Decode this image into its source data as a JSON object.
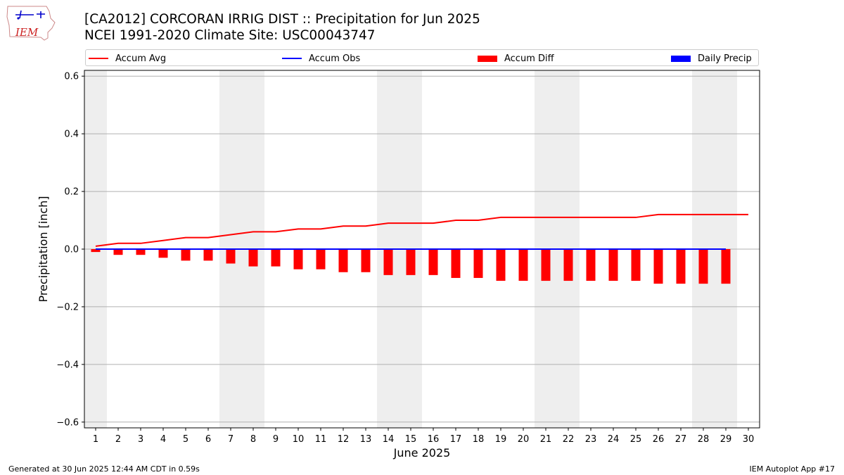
{
  "header": {
    "title": "[CA2012] CORCORAN IRRIG DIST :: Precipitation for Jun 2025",
    "subtitle": "NCEI 1991-2020 Climate Site: USC00043747"
  },
  "logo": {
    "text": "IEM"
  },
  "legend": {
    "items": [
      {
        "label": "Accum Avg",
        "kind": "line",
        "color": "#ff0000"
      },
      {
        "label": "Accum Obs",
        "kind": "line",
        "color": "#0000ff"
      },
      {
        "label": "Accum Diff",
        "kind": "box",
        "color": "#ff0000"
      },
      {
        "label": "Daily Precip",
        "kind": "box",
        "color": "#0000ff"
      }
    ]
  },
  "footer": {
    "left": "Generated at 30 Jun 2025 12:44 AM CDT in 0.59s",
    "right": "IEM Autoplot App #17"
  },
  "chart_data": {
    "type": "bar",
    "xlabel": "June 2025",
    "ylabel": "Precipitation [inch]",
    "x": [
      1,
      2,
      3,
      4,
      5,
      6,
      7,
      8,
      9,
      10,
      11,
      12,
      13,
      14,
      15,
      16,
      17,
      18,
      19,
      20,
      21,
      22,
      23,
      24,
      25,
      26,
      27,
      28,
      29,
      30
    ],
    "xlim": [
      0.5,
      30.5
    ],
    "ylim": [
      -0.62,
      0.62
    ],
    "yticks": [
      -0.6,
      -0.4,
      -0.2,
      0.0,
      0.2,
      0.4,
      0.6
    ],
    "ytick_labels": [
      "−0.6",
      "−0.4",
      "−0.2",
      "0.0",
      "0.2",
      "0.4",
      "0.6"
    ],
    "weekend_shading": [
      [
        0.5,
        1.5
      ],
      [
        6.5,
        8.5
      ],
      [
        13.5,
        15.5
      ],
      [
        20.5,
        22.5
      ],
      [
        27.5,
        29.5
      ]
    ],
    "grid": "y",
    "legend_position": "top",
    "series": [
      {
        "name": "Accum Avg",
        "type": "line",
        "color": "#ff0000",
        "x": [
          1,
          2,
          3,
          4,
          5,
          6,
          7,
          8,
          9,
          10,
          11,
          12,
          13,
          14,
          15,
          16,
          17,
          18,
          19,
          20,
          21,
          22,
          23,
          24,
          25,
          26,
          27,
          28,
          29,
          30
        ],
        "values": [
          0.01,
          0.02,
          0.02,
          0.03,
          0.04,
          0.04,
          0.05,
          0.06,
          0.06,
          0.07,
          0.07,
          0.08,
          0.08,
          0.09,
          0.09,
          0.09,
          0.1,
          0.1,
          0.11,
          0.11,
          0.11,
          0.11,
          0.11,
          0.11,
          0.11,
          0.12,
          0.12,
          0.12,
          0.12,
          0.12
        ]
      },
      {
        "name": "Accum Obs",
        "type": "line",
        "color": "#0000ff",
        "x": [
          1,
          2,
          3,
          4,
          5,
          6,
          7,
          8,
          9,
          10,
          11,
          12,
          13,
          14,
          15,
          16,
          17,
          18,
          19,
          20,
          21,
          22,
          23,
          24,
          25,
          26,
          27,
          28,
          29
        ],
        "values": [
          0,
          0,
          0,
          0,
          0,
          0,
          0,
          0,
          0,
          0,
          0,
          0,
          0,
          0,
          0,
          0,
          0,
          0,
          0,
          0,
          0,
          0,
          0,
          0,
          0,
          0,
          0,
          0,
          0
        ]
      },
      {
        "name": "Accum Diff",
        "type": "bar",
        "color": "#ff0000",
        "x": [
          1,
          2,
          3,
          4,
          5,
          6,
          7,
          8,
          9,
          10,
          11,
          12,
          13,
          14,
          15,
          16,
          17,
          18,
          19,
          20,
          21,
          22,
          23,
          24,
          25,
          26,
          27,
          28,
          29
        ],
        "values": [
          -0.01,
          -0.02,
          -0.02,
          -0.03,
          -0.04,
          -0.04,
          -0.05,
          -0.06,
          -0.06,
          -0.07,
          -0.07,
          -0.08,
          -0.08,
          -0.09,
          -0.09,
          -0.09,
          -0.1,
          -0.1,
          -0.11,
          -0.11,
          -0.11,
          -0.11,
          -0.11,
          -0.11,
          -0.11,
          -0.12,
          -0.12,
          -0.12,
          -0.12
        ]
      },
      {
        "name": "Daily Precip",
        "type": "bar",
        "color": "#0000ff",
        "x": [
          1,
          2,
          3,
          4,
          5,
          6,
          7,
          8,
          9,
          10,
          11,
          12,
          13,
          14,
          15,
          16,
          17,
          18,
          19,
          20,
          21,
          22,
          23,
          24,
          25,
          26,
          27,
          28,
          29
        ],
        "values": [
          0,
          0,
          0,
          0,
          0,
          0,
          0,
          0,
          0,
          0,
          0,
          0,
          0,
          0,
          0,
          0,
          0,
          0,
          0,
          0,
          0,
          0,
          0,
          0,
          0,
          0,
          0,
          0,
          0
        ]
      }
    ]
  }
}
